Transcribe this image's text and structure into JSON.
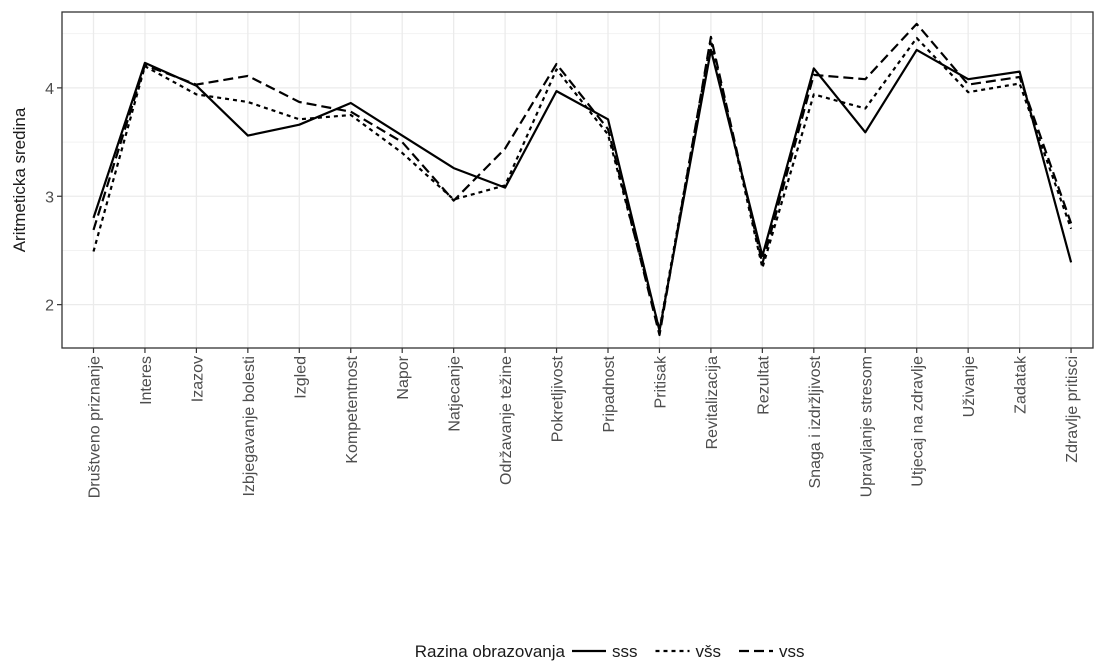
{
  "chart_data": {
    "type": "line",
    "xlabel": "",
    "ylabel": "Aritmeticka sredina",
    "ylim": [
      1.6,
      4.7
    ],
    "yticks": [
      2,
      3,
      4
    ],
    "grid": true,
    "legend_position": "bottom",
    "legend_title": "Razina obrazovanja",
    "categories": [
      "Društveno priznanje",
      "Interes",
      "Izazov",
      "Izbjegavanje bolesti",
      "Izgled",
      "Kompetentnost",
      "Napor",
      "Natjecanje",
      "Održavanje težine",
      "Pokretljivost",
      "Pripadnost",
      "Pritisak",
      "Revitalizacija",
      "Rezultat",
      "Snaga i izdržljivost",
      "Upravljanje stresom",
      "Utjecaj na zdravlje",
      "Uživanje",
      "Zadatak",
      "Zdravlje pritisci"
    ],
    "series": [
      {
        "name": "sss",
        "linestyle": "solid",
        "values": [
          2.8,
          4.23,
          4.02,
          3.56,
          3.66,
          3.86,
          3.56,
          3.26,
          3.08,
          3.97,
          3.71,
          1.76,
          4.35,
          2.45,
          4.18,
          3.59,
          4.35,
          4.08,
          4.15,
          2.39
        ]
      },
      {
        "name": "všs",
        "linestyle": "dotted",
        "values": [
          2.49,
          4.2,
          3.94,
          3.87,
          3.71,
          3.75,
          3.4,
          2.97,
          3.1,
          4.17,
          3.57,
          1.77,
          4.44,
          2.34,
          3.94,
          3.81,
          4.46,
          3.96,
          4.04,
          2.7
        ]
      },
      {
        "name": "vss",
        "linestyle": "dashed",
        "values": [
          2.69,
          4.21,
          4.03,
          4.11,
          3.87,
          3.78,
          3.5,
          2.96,
          3.44,
          4.22,
          3.62,
          1.72,
          4.47,
          2.38,
          4.12,
          4.08,
          4.59,
          4.03,
          4.1,
          2.75
        ]
      }
    ]
  }
}
